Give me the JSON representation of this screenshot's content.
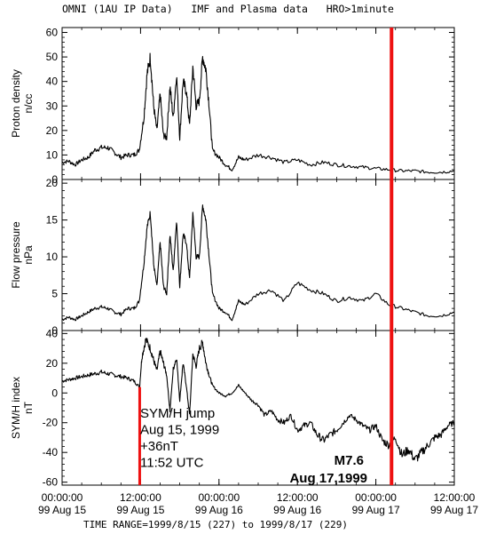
{
  "header": {
    "title": "OMNI (1AU IP Data)   IMF and Plasma data   HRO>1minute"
  },
  "footer": {
    "time_range": "TIME RANGE=1999/8/15 (227) to 1999/8/17 (229)"
  },
  "x_axis": {
    "tick_times": [
      "00:00:00",
      "12:00:00",
      "00:00:00",
      "12:00:00",
      "00:00:00",
      "12:00:00"
    ],
    "tick_dates": [
      "99 Aug 15",
      "99 Aug 15",
      "99 Aug 16",
      "99 Aug 16",
      "99 Aug 17",
      "99 Aug 17"
    ],
    "tick_hours": [
      0,
      12,
      24,
      36,
      48,
      60
    ],
    "range_hours": [
      0,
      60
    ]
  },
  "chart_data": [
    {
      "type": "line",
      "panel": "proton",
      "ylabel": "Proton density",
      "yunit": "n/cc",
      "ylim": [
        0,
        62
      ],
      "yticks": [
        0,
        10,
        20,
        30,
        40,
        50,
        60
      ],
      "series": [
        {
          "x": [
            0,
            1,
            2,
            3,
            4,
            5,
            6,
            7,
            8,
            9,
            10,
            11,
            11.8,
            12.5,
            13,
            13.5,
            14,
            14.5,
            15,
            15.5,
            16,
            16.5,
            17,
            17.5,
            18,
            18.5,
            19,
            19.5,
            20,
            20.5,
            21,
            21.5,
            22,
            22.5,
            23,
            24,
            25,
            26,
            27,
            28,
            30,
            32,
            34,
            36,
            38,
            40,
            42,
            44,
            46,
            48,
            50,
            52,
            54,
            56,
            58,
            60
          ],
          "y": [
            7,
            7.5,
            6,
            8,
            9,
            12,
            13,
            13,
            11,
            9,
            10,
            10,
            12,
            25,
            43,
            50,
            30,
            20,
            35,
            18,
            17,
            38,
            25,
            43,
            17,
            40,
            36,
            22,
            46,
            30,
            32,
            50,
            45,
            30,
            12,
            9,
            6,
            4,
            9,
            8,
            10,
            9,
            7,
            8,
            6,
            7,
            6,
            5.5,
            5,
            4.5,
            4,
            3.5,
            3.5,
            3,
            3,
            3.5
          ]
        }
      ]
    },
    {
      "type": "line",
      "panel": "pressure",
      "ylabel": "Flow pressure",
      "yunit": "nPa",
      "ylim": [
        0,
        20.5
      ],
      "yticks": [
        0,
        5,
        10,
        15,
        20
      ],
      "series": [
        {
          "x": [
            0,
            1,
            2,
            3,
            4,
            5,
            6,
            7,
            8,
            9,
            10,
            11,
            11.8,
            12.5,
            13,
            13.5,
            14,
            14.5,
            15,
            15.5,
            16,
            16.5,
            17,
            17.5,
            18,
            18.5,
            19,
            19.5,
            20,
            20.5,
            21,
            21.5,
            22,
            22.5,
            23,
            24,
            25,
            26,
            27,
            28,
            30,
            32,
            34,
            36,
            38,
            40,
            42,
            44,
            46,
            48,
            50,
            52,
            54,
            56,
            58,
            60
          ],
          "y": [
            1.5,
            1.8,
            1.5,
            2,
            2.5,
            3,
            3.2,
            3,
            2.5,
            2.2,
            3,
            3,
            4,
            9,
            14,
            16,
            9,
            6,
            12,
            6,
            5,
            13,
            8,
            15,
            6,
            13,
            12,
            7,
            16,
            10,
            10,
            17,
            15,
            10,
            5,
            3,
            2.5,
            1.5,
            4,
            3.5,
            5,
            5.5,
            4,
            6.5,
            5.5,
            5,
            4,
            4.5,
            4,
            5,
            3.5,
            3,
            2.5,
            2,
            2,
            2.5
          ]
        }
      ]
    },
    {
      "type": "line",
      "panel": "symh",
      "ylabel": "SYM/H index",
      "yunit": "nT",
      "ylim": [
        -62,
        42
      ],
      "yticks": [
        -60,
        -40,
        -20,
        0,
        20,
        40
      ],
      "series": [
        {
          "x": [
            0,
            1,
            2,
            3,
            4,
            5,
            6,
            7,
            8,
            9,
            10,
            11,
            11.85,
            12.2,
            12.8,
            13.5,
            14,
            14.5,
            15,
            15.5,
            16,
            16.5,
            17,
            17.5,
            18,
            18.5,
            19,
            19.5,
            20,
            20.5,
            21,
            21.5,
            22,
            22.5,
            23,
            24,
            25,
            26,
            27,
            28,
            29,
            30,
            31,
            32,
            33,
            34,
            35,
            36,
            37,
            38,
            39,
            40,
            41,
            42,
            43,
            44,
            45,
            46,
            47,
            48,
            49,
            50,
            51,
            52,
            53,
            54,
            55,
            56,
            57,
            58,
            59,
            60
          ],
          "y": [
            8,
            9,
            10,
            11,
            12,
            13,
            14,
            13,
            12,
            11,
            10,
            8,
            4,
            24,
            36,
            30,
            22,
            15,
            28,
            20,
            12,
            -12,
            16,
            24,
            -5,
            20,
            5,
            -15,
            26,
            18,
            30,
            34,
            20,
            12,
            5,
            0,
            -2,
            0,
            5,
            0,
            -5,
            -8,
            -15,
            -12,
            -18,
            -20,
            -15,
            -25,
            -22,
            -20,
            -28,
            -32,
            -28,
            -25,
            -20,
            -15,
            -18,
            -22,
            -25,
            -22,
            -32,
            -35,
            -30,
            -42,
            -38,
            -45,
            -40,
            -35,
            -30,
            -28,
            -22,
            -20
          ]
        }
      ]
    }
  ],
  "markers": {
    "symh_jump": {
      "hour": 11.87,
      "color": "#ee1111",
      "lines": [
        "SYM/H jump",
        "Aug 15, 1999",
        "+36nT",
        "11:52 UTC"
      ]
    },
    "flare": {
      "hour": 50.4,
      "color": "#ee1111",
      "lines": [
        "M7.6",
        "Aug 17,1999"
      ]
    }
  }
}
